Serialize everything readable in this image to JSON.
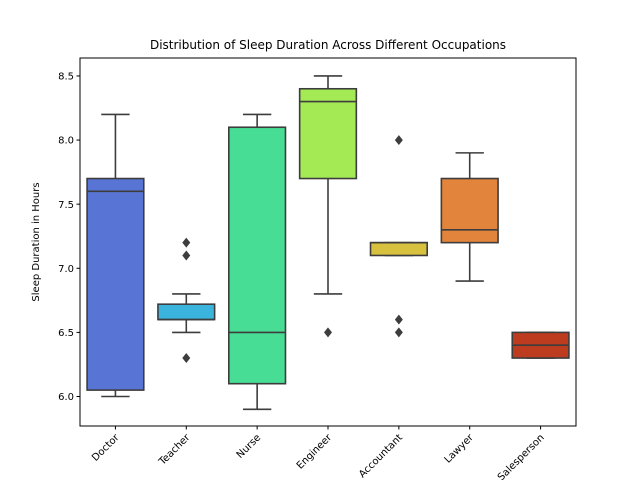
{
  "chart_data": {
    "type": "box",
    "title": "Distribution of Sleep Duration Across Different Occupations",
    "xlabel": "",
    "ylabel": "Sleep Duration in Hours",
    "ylim": [
      5.77,
      8.64
    ],
    "yticks": [
      6.0,
      6.5,
      7.0,
      7.5,
      8.0,
      8.5
    ],
    "ytick_labels": [
      "6.0",
      "6.5",
      "7.0",
      "7.5",
      "8.0",
      "8.5"
    ],
    "grid": false,
    "colors": {
      "box_edge": "#3d3d3d"
    },
    "categories": [
      "Doctor",
      "Teacher",
      "Nurse",
      "Engineer",
      "Accountant",
      "Lawyer",
      "Salesperson"
    ],
    "boxes": [
      {
        "category": "Doctor",
        "color": "#5875d6",
        "whisker_low": 6.0,
        "q1": 6.05,
        "median": 7.6,
        "q3": 7.7,
        "whisker_high": 8.2,
        "outliers": []
      },
      {
        "category": "Teacher",
        "color": "#3ab4dc",
        "whisker_low": 6.5,
        "q1": 6.6,
        "median": 6.6,
        "q3": 6.72,
        "whisker_high": 6.8,
        "outliers": [
          7.2,
          7.1,
          6.3
        ]
      },
      {
        "category": "Nurse",
        "color": "#47dd94",
        "whisker_low": 5.9,
        "q1": 6.1,
        "median": 6.5,
        "q3": 8.1,
        "whisker_high": 8.2,
        "outliers": []
      },
      {
        "category": "Engineer",
        "color": "#a4ea54",
        "whisker_low": 6.8,
        "q1": 7.7,
        "median": 8.3,
        "q3": 8.4,
        "whisker_high": 8.5,
        "outliers": [
          6.5
        ]
      },
      {
        "category": "Accountant",
        "color": "#d8c13e",
        "whisker_low": 7.1,
        "q1": 7.1,
        "median": 7.2,
        "q3": 7.2,
        "whisker_high": 7.2,
        "outliers": [
          8.0,
          6.6,
          6.5
        ]
      },
      {
        "category": "Lawyer",
        "color": "#e2843b",
        "whisker_low": 6.9,
        "q1": 7.2,
        "median": 7.3,
        "q3": 7.7,
        "whisker_high": 7.9,
        "outliers": []
      },
      {
        "category": "Salesperson",
        "color": "#bd3c1f",
        "whisker_low": 6.3,
        "q1": 6.3,
        "median": 6.4,
        "q3": 6.5,
        "whisker_high": 6.5,
        "outliers": []
      }
    ]
  }
}
